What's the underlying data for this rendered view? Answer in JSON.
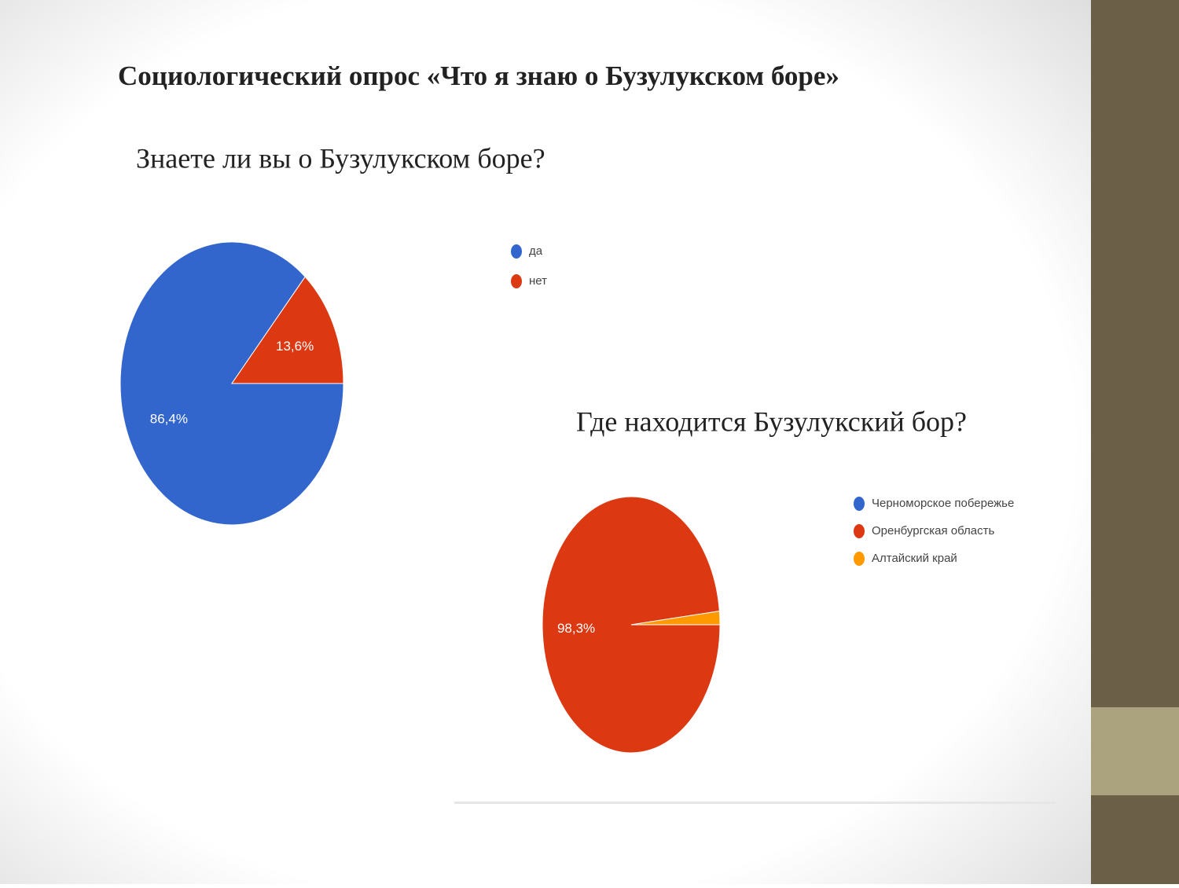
{
  "title": "Социологический опрос «Что я знаю о Бузулукском боре»",
  "chart_data": [
    {
      "type": "pie",
      "title": "Знаете ли вы о Бузулукском боре?",
      "categories": [
        "да",
        "нет"
      ],
      "values": [
        86.4,
        13.6
      ],
      "value_labels": [
        "86,4%",
        "13,6%"
      ],
      "colors": [
        "#3366cc",
        "#dc3912"
      ]
    },
    {
      "type": "pie",
      "title": "Где находится Бузулукский бор?",
      "categories": [
        "Черноморское побережье",
        "Оренбургская область",
        "Алтайский край"
      ],
      "values": [
        0,
        98.3,
        1.7
      ],
      "value_labels": [
        null,
        "98,3%",
        null
      ],
      "colors": [
        "#3366cc",
        "#dc3912",
        "#ff9900"
      ]
    }
  ]
}
